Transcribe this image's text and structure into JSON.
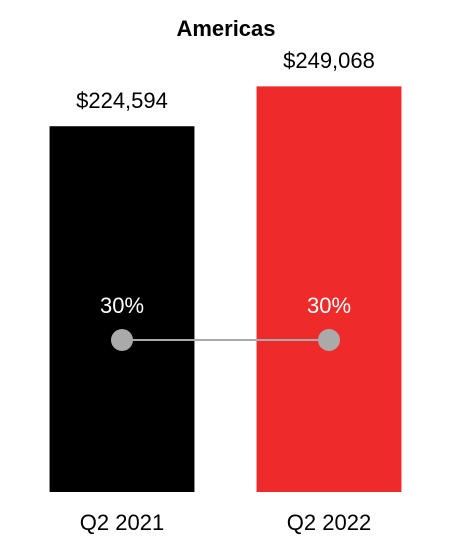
{
  "chart_data": {
    "type": "bar",
    "title": "Americas",
    "categories": [
      "Q2 2021",
      "Q2 2022"
    ],
    "series": [
      {
        "type": "bar",
        "colors": [
          "#000000",
          "#ee2a2a"
        ],
        "values": [
          224594,
          249068
        ],
        "value_labels": [
          "$224,594",
          "$249,068"
        ]
      },
      {
        "type": "line",
        "axis": "y2",
        "color": "#aaaaaa",
        "values": [
          30,
          30
        ],
        "value_labels": [
          "30%",
          "30%"
        ]
      }
    ],
    "ylim": [
      0,
      280000
    ],
    "y2lim": [
      0,
      90
    ]
  }
}
